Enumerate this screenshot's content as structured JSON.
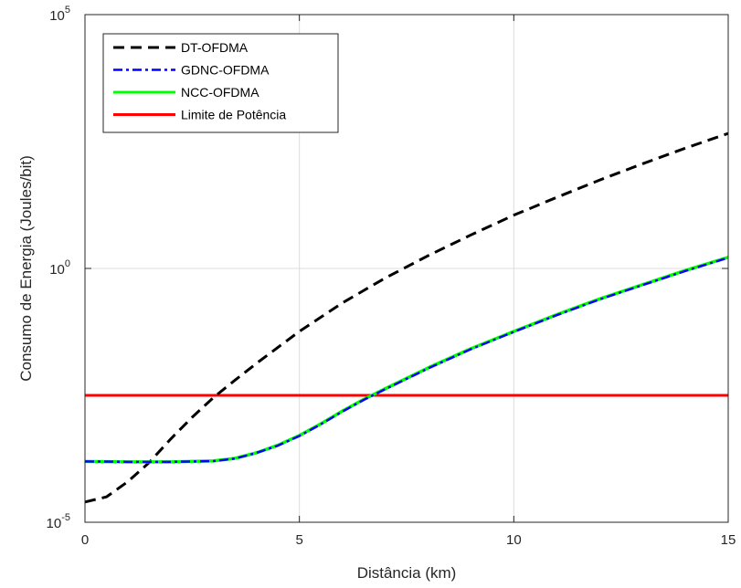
{
  "chart_data": {
    "type": "line",
    "xlabel": "Distância (km)",
    "ylabel": "Consumo de Energia (Joules/bit)",
    "xlim": [
      0,
      15
    ],
    "ylim": [
      1e-05,
      100000
    ],
    "yscale": "log",
    "grid": true,
    "legend_position": "top-left",
    "x_ticks": [
      "0",
      "5",
      "10",
      "15"
    ],
    "y_ticks": [
      {
        "base": "10",
        "exp": "-5"
      },
      {
        "base": "10",
        "exp": "0"
      },
      {
        "base": "10",
        "exp": "5"
      }
    ],
    "series": [
      {
        "name": "DT-OFDMA",
        "color": "#000000",
        "style": "dashed",
        "x": [
          0,
          0.5,
          1,
          1.5,
          2,
          2.5,
          3,
          3.5,
          4,
          5,
          6,
          7,
          8,
          9,
          10,
          11,
          12,
          13,
          14,
          15
        ],
        "y": [
          2.51e-05,
          3.16e-05,
          6.31e-05,
          0.000151,
          0.000437,
          0.00117,
          0.00288,
          0.00631,
          0.0135,
          0.0575,
          0.209,
          0.646,
          1.78,
          4.57,
          11.2,
          25.1,
          55.0,
          115,
          234,
          457
        ]
      },
      {
        "name": "GDNC-OFDMA",
        "color": "#0000ff",
        "style": "dashdot",
        "x": [
          0,
          1,
          2,
          3,
          3.5,
          4,
          4.5,
          5,
          5.5,
          6,
          6.5,
          7,
          8,
          9,
          10,
          11,
          12,
          13,
          14,
          15
        ],
        "y": [
          0.000158,
          0.000155,
          0.000155,
          0.00016,
          0.00018,
          0.000232,
          0.000324,
          0.000501,
          0.000851,
          0.00151,
          0.00257,
          0.00417,
          0.0107,
          0.0257,
          0.0562,
          0.12,
          0.245,
          0.468,
          0.89,
          1.62
        ]
      },
      {
        "name": "NCC-OFDMA",
        "color": "#00ff00",
        "style": "solid",
        "x": [
          0,
          1,
          2,
          3,
          3.5,
          4,
          4.5,
          5,
          5.5,
          6,
          6.5,
          7,
          8,
          9,
          10,
          11,
          12,
          13,
          14,
          15
        ],
        "y": [
          0.000158,
          0.000155,
          0.000155,
          0.000162,
          0.000182,
          0.000234,
          0.00033,
          0.000513,
          0.00087,
          0.00155,
          0.00263,
          0.00427,
          0.011,
          0.0263,
          0.0575,
          0.123,
          0.251,
          0.479,
          0.912,
          1.66
        ]
      },
      {
        "name": "Limite de Potência",
        "color": "#ff0000",
        "style": "solid",
        "x": [
          0,
          15
        ],
        "y": [
          0.00316,
          0.00316
        ]
      }
    ]
  }
}
